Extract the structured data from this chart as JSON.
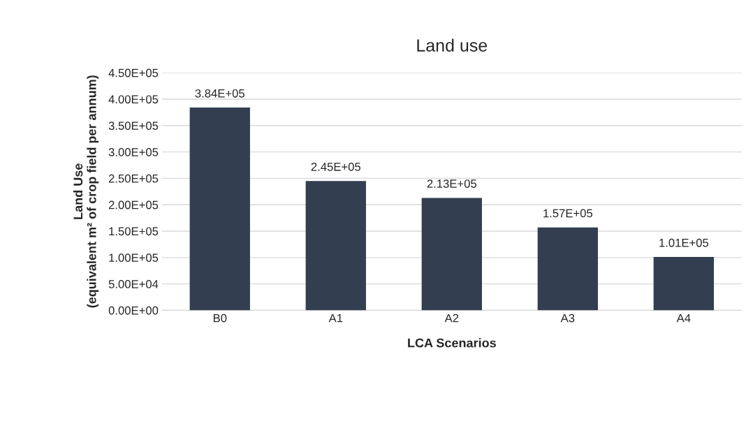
{
  "chart_data": {
    "type": "bar",
    "title": "Land use",
    "xlabel": "LCA Scenarios",
    "ylabel": "Land Use\n(equivalent m² of crop field per annum)",
    "categories": [
      "B0",
      "A1",
      "A2",
      "A3",
      "A4"
    ],
    "values": [
      384000,
      245000,
      213000,
      157000,
      101000
    ],
    "value_labels": [
      "3.84E+05",
      "2.45E+05",
      "2.13E+05",
      "1.57E+05",
      "1.01E+05"
    ],
    "color": "#333f50",
    "ylim": [
      0,
      450000
    ],
    "yticks": [
      {
        "value": 0,
        "label": "0.00E+00"
      },
      {
        "value": 50000,
        "label": "5.00E+04"
      },
      {
        "value": 100000,
        "label": "1.00E+05"
      },
      {
        "value": 150000,
        "label": "1.50E+05"
      },
      {
        "value": 200000,
        "label": "2.00E+05"
      },
      {
        "value": 250000,
        "label": "2.50E+05"
      },
      {
        "value": 300000,
        "label": "3.00E+05"
      },
      {
        "value": 350000,
        "label": "3.50E+05"
      },
      {
        "value": 400000,
        "label": "4.00E+05"
      },
      {
        "value": 450000,
        "label": "4.50E+05"
      }
    ],
    "grid": "y",
    "legend": false
  }
}
